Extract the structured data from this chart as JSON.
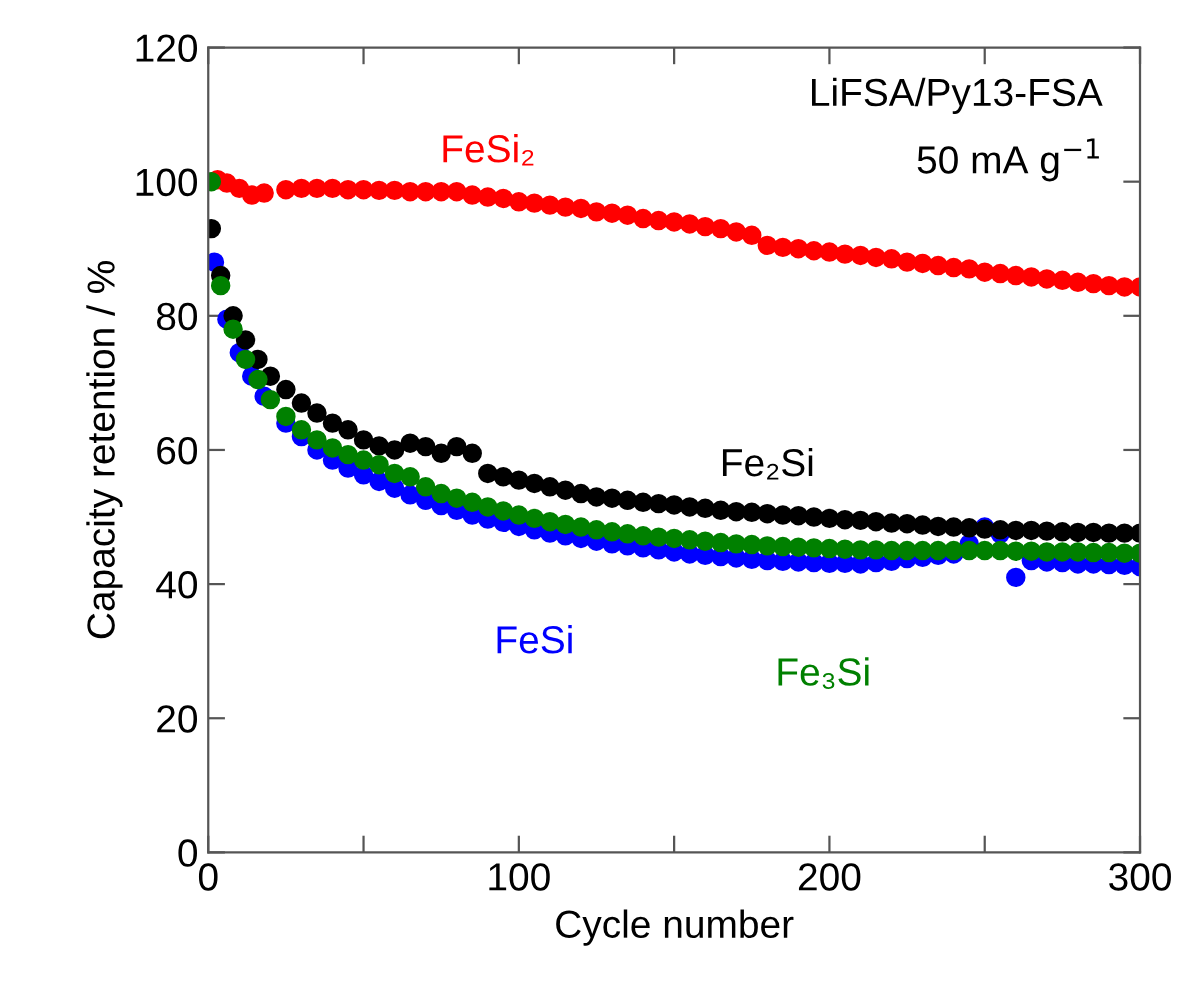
{
  "chart_data": {
    "type": "scatter",
    "xlabel": "Cycle number",
    "ylabel": "Capacity retention / %",
    "x": [
      1,
      4,
      8,
      12,
      16,
      20,
      25,
      30,
      35,
      40,
      45,
      50,
      55,
      60,
      65,
      70,
      75,
      80,
      85,
      90,
      95,
      100,
      105,
      110,
      115,
      120,
      125,
      130,
      135,
      140,
      145,
      150,
      155,
      160,
      165,
      170,
      175,
      180,
      185,
      190,
      195,
      200,
      205,
      210,
      215,
      220,
      225,
      230,
      235,
      240,
      245,
      250,
      255,
      260,
      265,
      270,
      275,
      280,
      285,
      290,
      295,
      300
    ],
    "series": [
      {
        "name": "FeSi₂",
        "color": "#ff0000",
        "x": [
          3,
          6,
          10,
          14,
          18,
          25,
          30,
          35,
          40,
          45,
          50,
          55,
          60,
          65,
          70,
          75,
          80,
          85,
          90,
          95,
          100,
          105,
          110,
          115,
          120,
          125,
          130,
          135,
          140,
          145,
          150,
          155,
          160,
          165,
          170,
          175,
          180,
          185,
          190,
          195,
          200,
          205,
          210,
          215,
          220,
          225,
          230,
          235,
          240,
          245,
          250,
          255,
          260,
          265,
          270,
          275,
          280,
          285,
          290,
          295,
          300
        ],
        "values": [
          100.3,
          99.8,
          99,
          98,
          98.3,
          98.8,
          99,
          99,
          99,
          98.8,
          98.8,
          98.7,
          98.7,
          98.5,
          98.5,
          98.5,
          98.5,
          98,
          97.7,
          97.5,
          97,
          96.8,
          96.5,
          96.2,
          96,
          95.5,
          95.3,
          95,
          94.5,
          94.2,
          94,
          93.7,
          93.3,
          93,
          92.5,
          92,
          90.5,
          90.2,
          90,
          89.7,
          89.5,
          89.2,
          89,
          88.7,
          88.5,
          88,
          87.8,
          87.5,
          87.2,
          87,
          86.5,
          86.3,
          86,
          85.8,
          85.5,
          85.3,
          85,
          84.8,
          84.5,
          84.3,
          84.3
        ]
      },
      {
        "name": "FeSi",
        "color": "#0000ff",
        "x": [
          2,
          6,
          10,
          14,
          18,
          25,
          30,
          35,
          40,
          45,
          50,
          55,
          60,
          65,
          70,
          75,
          80,
          85,
          90,
          95,
          100,
          105,
          110,
          115,
          120,
          125,
          130,
          135,
          140,
          145,
          150,
          155,
          160,
          165,
          170,
          175,
          180,
          185,
          190,
          195,
          200,
          205,
          210,
          215,
          220,
          225,
          230,
          235,
          240,
          245,
          250,
          255,
          260,
          265,
          270,
          275,
          280,
          285,
          290,
          295,
          300
        ],
        "values": [
          88,
          79.5,
          74.5,
          71,
          68,
          64,
          62,
          60,
          58.5,
          57.3,
          56.3,
          55.3,
          54.3,
          53.3,
          52.5,
          51.7,
          51,
          50.3,
          49.7,
          49.2,
          48.6,
          48.1,
          47.6,
          47.2,
          46.8,
          46.4,
          46,
          45.7,
          45.4,
          45.1,
          44.8,
          44.5,
          44.3,
          44.1,
          43.9,
          43.7,
          43.5,
          43.4,
          43.3,
          43.2,
          43.1,
          43.1,
          43,
          43.2,
          43.4,
          43.8,
          44,
          44.3,
          44.5,
          46,
          48.5,
          47.5,
          41,
          43.5,
          43.3,
          43.2,
          43,
          43,
          42.9,
          42.8,
          42.6
        ]
      },
      {
        "name": "Fe₂Si",
        "color": "#000000",
        "values": [
          93,
          86,
          80,
          76.4,
          73.5,
          71,
          69,
          67,
          65.5,
          64,
          63,
          61.5,
          60.6,
          60,
          61,
          60.5,
          59.5,
          60.5,
          59.5,
          56.5,
          56,
          55.5,
          55,
          54.5,
          54,
          53.5,
          53,
          52.8,
          52.5,
          52.2,
          52,
          51.8,
          51.5,
          51.3,
          51,
          50.8,
          50.7,
          50.5,
          50.3,
          50.2,
          50,
          49.8,
          49.6,
          49.5,
          49.3,
          49.1,
          49,
          48.8,
          48.6,
          48.5,
          48.4,
          48.2,
          48.1,
          48,
          48,
          47.9,
          47.8,
          47.7,
          47.7,
          47.6,
          47.6,
          47.6
        ]
      },
      {
        "name": "Fe₃Si",
        "color": "#008000",
        "values": [
          100,
          84.5,
          78,
          73.5,
          70.5,
          67.5,
          65,
          63,
          61.5,
          60.3,
          59.3,
          58.5,
          57.8,
          56.5,
          56,
          54.5,
          53.5,
          52.8,
          52.2,
          51.5,
          50.9,
          50.3,
          49.8,
          49.3,
          48.9,
          48.5,
          48.1,
          47.8,
          47.5,
          47.2,
          47,
          46.8,
          46.6,
          46.4,
          46.2,
          46,
          45.9,
          45.7,
          45.6,
          45.5,
          45.4,
          45.3,
          45.2,
          45.1,
          45.1,
          45,
          45,
          45,
          45,
          45,
          45,
          45,
          45,
          44.9,
          44.9,
          44.8,
          44.8,
          44.8,
          44.7,
          44.7,
          44.6,
          44.6
        ]
      }
    ],
    "annotations": [
      "LiFSA/Py13-FSA",
      "50 mA g$^{−1}$"
    ],
    "xlim": [
      0,
      300
    ],
    "ylim": [
      0,
      120
    ],
    "xticks": [
      0,
      {
        "value": 50,
        "label": null
      },
      100,
      {
        "value": 150,
        "label": null
      },
      200,
      {
        "value": 250,
        "label": null
      },
      300
    ],
    "yticks": [
      0,
      20,
      40,
      60,
      80,
      100,
      120
    ],
    "marker": "circle",
    "grid": false,
    "legend": false
  }
}
